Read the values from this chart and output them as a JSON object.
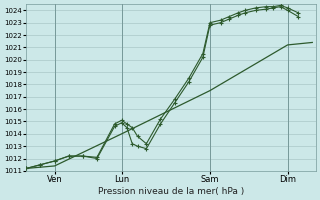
{
  "xlabel": "Pression niveau de la mer( hPa )",
  "bg_color": "#cce8e8",
  "grid_color": "#aac8c8",
  "line_dark": "#2d5a2d",
  "ylim": [
    1011,
    1024.5
  ],
  "ytick_min": 1011,
  "ytick_max": 1024,
  "xlim": [
    0,
    8.2
  ],
  "xtick_positions": [
    0.8,
    2.7,
    5.2,
    7.4
  ],
  "xtick_labels": [
    "Ven",
    "Lun",
    "Sam",
    "Dim"
  ],
  "vline_positions": [
    0.8,
    2.7,
    5.2,
    7.4
  ],
  "series1_x": [
    0.0,
    0.4,
    0.8,
    1.2,
    1.6,
    2.0,
    2.5,
    2.7,
    2.85,
    3.0,
    3.15,
    3.4,
    3.8,
    4.2,
    4.6,
    5.0,
    5.2,
    5.5,
    5.75,
    6.0,
    6.2,
    6.5,
    6.8,
    7.0,
    7.2,
    7.4,
    7.7
  ],
  "series1_y": [
    1011.2,
    1011.5,
    1011.8,
    1012.2,
    1012.2,
    1012.1,
    1014.8,
    1015.1,
    1014.8,
    1014.5,
    1013.8,
    1013.2,
    1015.2,
    1016.8,
    1018.5,
    1020.5,
    1023.0,
    1023.2,
    1023.5,
    1023.8,
    1024.0,
    1024.2,
    1024.3,
    1024.3,
    1024.4,
    1024.2,
    1023.8
  ],
  "series2_x": [
    0.0,
    0.4,
    0.8,
    1.2,
    1.6,
    2.0,
    2.5,
    2.7,
    2.85,
    3.0,
    3.15,
    3.4,
    3.8,
    4.2,
    4.6,
    5.0,
    5.2,
    5.5,
    5.75,
    6.0,
    6.2,
    6.5,
    6.8,
    7.0,
    7.2,
    7.4,
    7.7
  ],
  "series2_y": [
    1011.2,
    1011.5,
    1011.8,
    1012.2,
    1012.2,
    1012.0,
    1014.6,
    1014.9,
    1014.5,
    1013.2,
    1013.0,
    1012.8,
    1014.8,
    1016.5,
    1018.2,
    1020.2,
    1022.8,
    1023.0,
    1023.3,
    1023.6,
    1023.8,
    1024.0,
    1024.1,
    1024.2,
    1024.3,
    1024.0,
    1023.5
  ],
  "series3_x": [
    0.0,
    0.8,
    2.7,
    5.2,
    7.4,
    8.1
  ],
  "series3_y": [
    1011.2,
    1011.4,
    1014.0,
    1017.5,
    1021.2,
    1021.4
  ]
}
